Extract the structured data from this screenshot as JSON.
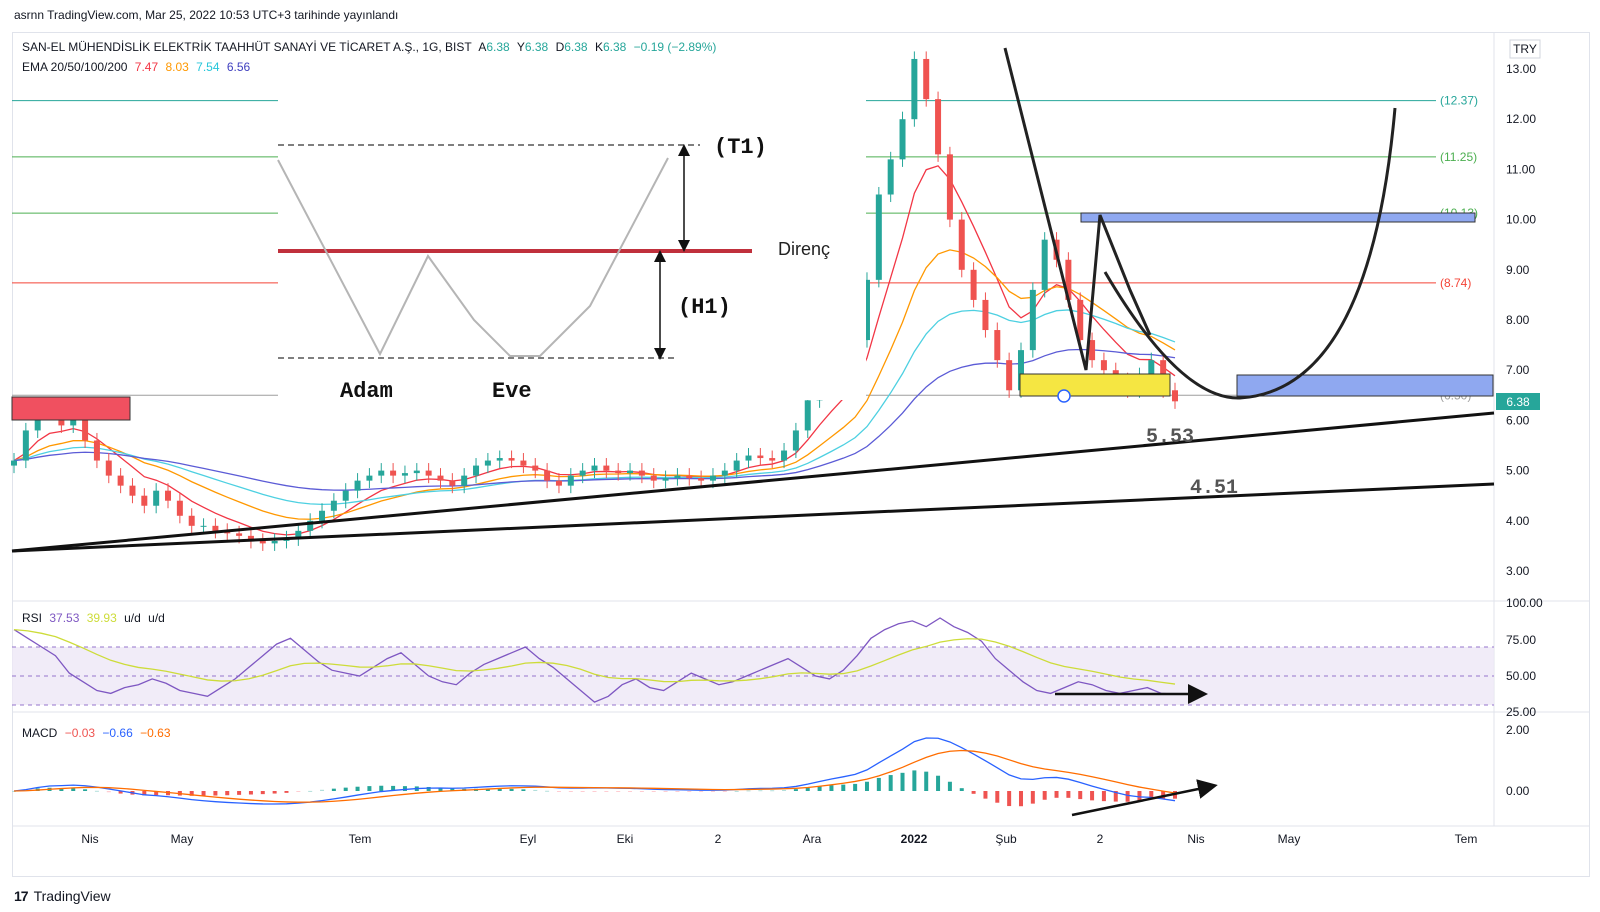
{
  "header": {
    "published": "asrnn TradingView.com, Mar 25, 2022 10:53 UTC+3 tarihinde yayınlandı",
    "currency": "TRY"
  },
  "symbol_legend": {
    "name": "SAN-EL MÜHENDİSLİK ELEKTRİK TAAHHÜT SANAYİ VE TİCARET A.Ş., 1G, BIST",
    "open_label": "A",
    "open": "6.38",
    "high_label": "Y",
    "high": "6.38",
    "low_label": "D",
    "low": "6.38",
    "close_label": "K",
    "close": "6.38",
    "change": "−0.19 (−2.89%)"
  },
  "ema_legend": {
    "label": "EMA 20/50/100/200",
    "v20": "7.47",
    "v50": "8.03",
    "v100": "7.54",
    "v200": "6.56"
  },
  "rsi_legend": {
    "label": "RSI",
    "rsi": "37.53",
    "ma": "39.93",
    "ud1": "u/d",
    "ud2": "u/d"
  },
  "macd_legend": {
    "label": "MACD",
    "hist": "−0.03",
    "macd": "−0.66",
    "signal": "−0.63"
  },
  "current_price": "6.38",
  "inset": {
    "t1": "(T1)",
    "h1": "(H1)",
    "resistance": "Direnç",
    "left_label": "Adam",
    "right_label": "Eve"
  },
  "annotations": {
    "support1": "5.53",
    "support2": "4.51"
  },
  "footer": {
    "logo_mark": "17",
    "brand": "TradingView"
  },
  "colors": {
    "ema20": "#f23645",
    "ema50": "#ff9800",
    "ema100": "#4dd0e1",
    "ema200": "#5b5bd6",
    "up": "#26a69a",
    "down": "#ef5350",
    "rsi": "#7e57c2",
    "rsi_ma": "#cddc39",
    "macd": "#2962ff",
    "signal": "#ff6d00",
    "fib_green": "#4caf50",
    "fib_red": "#f44336"
  },
  "chart_data": [
    {
      "type": "candlestick",
      "title": "SAN-EL MÜHENDİSLİK ELEKTRİK TAAHHÜT SANAYİ VE TİCARET A.Ş., 1G, BIST",
      "x_tick_labels": [
        "Nis",
        "May",
        "Tem",
        "Eyl",
        "Eki",
        "2",
        "Ara",
        "2022",
        "Şub",
        "2",
        "Nis",
        "May",
        "Tem"
      ],
      "y_tick_labels": [
        "3.00",
        "4.00",
        "5.00",
        "6.00",
        "7.00",
        "8.00",
        "9.00",
        "10.00",
        "11.00",
        "12.00",
        "13.00"
      ],
      "ylim": [
        2.5,
        13.5
      ],
      "fib_levels": [
        {
          "label": "(12.37)",
          "value": 12.37,
          "color": "teal"
        },
        {
          "label": "(11.25)",
          "value": 11.25,
          "color": "green"
        },
        {
          "label": "(10.13)",
          "value": 10.13,
          "color": "green"
        },
        {
          "label": "(8.74)",
          "value": 8.74,
          "color": "red"
        },
        {
          "label": "(6.50)",
          "value": 6.5,
          "color": "gray"
        }
      ],
      "close_series_approx": [
        5.2,
        5.8,
        6.3,
        6.2,
        5.9,
        6.0,
        5.6,
        5.2,
        4.9,
        4.7,
        4.5,
        4.3,
        4.6,
        4.4,
        4.1,
        3.9,
        3.9,
        3.8,
        3.75,
        3.7,
        3.6,
        3.55,
        3.6,
        3.65,
        3.8,
        4.0,
        4.2,
        4.4,
        4.6,
        4.8,
        4.9,
        5.0,
        4.9,
        4.95,
        5.0,
        4.9,
        4.8,
        4.7,
        4.9,
        5.1,
        5.2,
        5.25,
        5.2,
        5.1,
        5.0,
        4.8,
        4.7,
        4.9,
        5.0,
        5.1,
        5.0,
        4.95,
        5.0,
        4.9,
        4.8,
        4.85,
        4.9,
        4.85,
        4.8,
        4.9,
        5.0,
        5.2,
        5.3,
        5.25,
        5.2,
        5.4,
        5.8,
        6.4,
        6.8,
        7.0,
        7.2,
        7.6,
        8.8,
        10.5,
        11.2,
        12.0,
        13.2,
        12.4,
        11.3,
        10.0,
        9.0,
        8.4,
        7.8,
        7.2,
        6.6,
        7.4,
        8.6,
        9.6,
        9.2,
        8.4,
        7.6,
        7.2,
        7.0,
        6.8,
        6.6,
        6.9,
        7.2,
        6.6,
        6.38
      ],
      "series": [
        {
          "name": "EMA 20",
          "last": 7.47
        },
        {
          "name": "EMA 50",
          "last": 8.03
        },
        {
          "name": "EMA 100",
          "last": 7.54
        },
        {
          "name": "EMA 200",
          "last": 6.56
        }
      ]
    },
    {
      "type": "line",
      "title": "RSI",
      "y_tick_labels": [
        "25.00",
        "50.00",
        "75.00",
        "100.00"
      ],
      "ylim": [
        25,
        100
      ],
      "bands": [
        30,
        50,
        70
      ],
      "rsi_approx": [
        82,
        76,
        70,
        64,
        52,
        46,
        40,
        38,
        42,
        44,
        48,
        45,
        40,
        38,
        36,
        42,
        48,
        56,
        64,
        72,
        76,
        68,
        60,
        54,
        52,
        50,
        56,
        62,
        66,
        58,
        50,
        46,
        44,
        52,
        58,
        62,
        66,
        70,
        62,
        56,
        48,
        40,
        32,
        36,
        44,
        48,
        42,
        40,
        46,
        52,
        48,
        44,
        46,
        50,
        54,
        58,
        62,
        56,
        50,
        48,
        54,
        64,
        76,
        82,
        86,
        88,
        84,
        90,
        84,
        80,
        74,
        62,
        54,
        46,
        40,
        38,
        42,
        46,
        44,
        40,
        38,
        40,
        42,
        38,
        37.53
      ],
      "series": [
        {
          "name": "RSI",
          "last": 37.53
        },
        {
          "name": "MA",
          "last": 39.93
        }
      ]
    },
    {
      "type": "line",
      "title": "MACD",
      "y_tick_labels": [
        "0.00",
        "2.00"
      ],
      "ylim": [
        -1.0,
        2.3
      ],
      "series": [
        {
          "name": "MACD",
          "last": -0.66
        },
        {
          "name": "Signal",
          "last": -0.63
        },
        {
          "name": "Histogram",
          "last": -0.03
        }
      ]
    }
  ]
}
